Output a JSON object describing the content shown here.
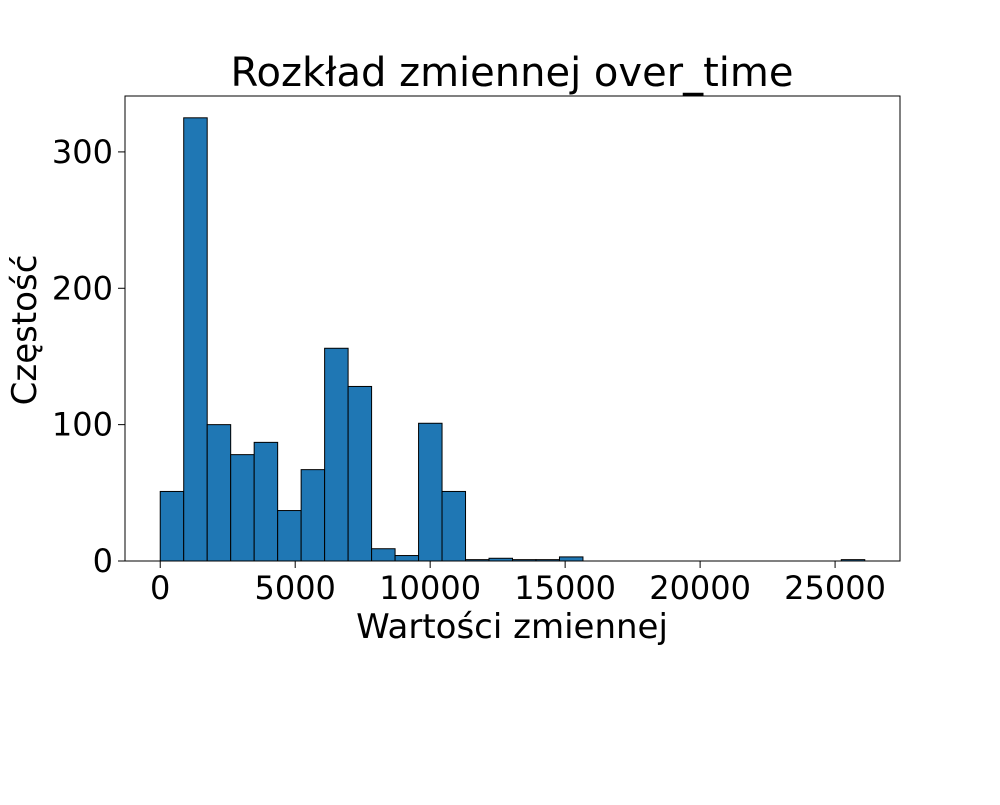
{
  "chart_data": {
    "type": "bar",
    "title": "Rozkład zmiennej over_time",
    "xlabel": "Wartości zmiennej",
    "ylabel": "Częstość",
    "bin_edges": [
      0,
      870,
      1740,
      2610,
      3480,
      4350,
      5220,
      6090,
      6960,
      7830,
      8700,
      9570,
      10440,
      11310,
      12180,
      13050,
      13920,
      14790,
      15660,
      16530,
      17400,
      18270,
      19140,
      20010,
      20880,
      21750,
      22620,
      23490,
      24360,
      25230,
      26100
    ],
    "values": [
      51,
      325,
      100,
      78,
      87,
      37,
      67,
      156,
      128,
      9,
      4,
      101,
      51,
      1,
      2,
      1,
      1,
      3,
      0,
      0,
      0,
      0,
      0,
      0,
      0,
      0,
      0,
      0,
      0,
      1
    ],
    "xlim": [
      -1305,
      27405
    ],
    "ylim": [
      0,
      341
    ],
    "x_ticks": [
      0,
      5000,
      10000,
      15000,
      20000,
      25000
    ],
    "x_tick_labels": [
      "0",
      "5000",
      "10000",
      "15000",
      "20000",
      "25000"
    ],
    "y_ticks": [
      0,
      100,
      200,
      300
    ],
    "y_tick_labels": [
      "0",
      "100",
      "200",
      "300"
    ],
    "grid": false,
    "bar_color": "#1f77b4",
    "edge_color": "#000000"
  }
}
